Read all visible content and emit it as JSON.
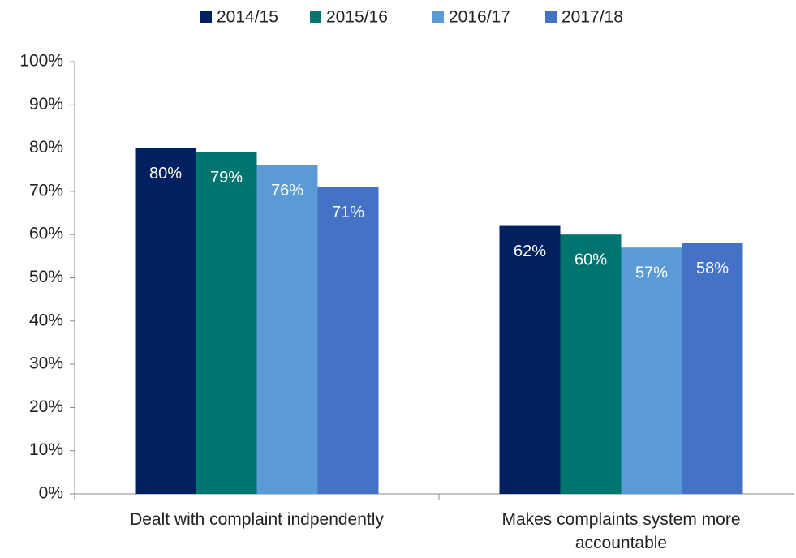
{
  "chart_data": {
    "type": "bar",
    "categories": [
      "Dealt with complaint indpendently",
      "Makes complaints system more accountable"
    ],
    "series": [
      {
        "name": "2014/15",
        "color": "#002060",
        "values": [
          80,
          62
        ],
        "value_labels": [
          "80%",
          "62%"
        ]
      },
      {
        "name": "2015/16",
        "color": "#00756F",
        "values": [
          79,
          60
        ],
        "value_labels": [
          "79%",
          "60%"
        ]
      },
      {
        "name": "2016/17",
        "color": "#5B9BD5",
        "values": [
          76,
          57
        ],
        "value_labels": [
          "76%",
          "57%"
        ]
      },
      {
        "name": "2017/18",
        "color": "#4472C4",
        "values": [
          71,
          58
        ],
        "value_labels": [
          "71%",
          "58%"
        ]
      }
    ],
    "ylim": [
      0,
      100
    ],
    "yticks": [
      {
        "value": 0,
        "label": "0%"
      },
      {
        "value": 10,
        "label": "10%"
      },
      {
        "value": 20,
        "label": "20%"
      },
      {
        "value": 30,
        "label": "30%"
      },
      {
        "value": 40,
        "label": "40%"
      },
      {
        "value": 50,
        "label": "50%"
      },
      {
        "value": 60,
        "label": "60%"
      },
      {
        "value": 70,
        "label": "70%"
      },
      {
        "value": 80,
        "label": "80%"
      },
      {
        "value": 90,
        "label": "90%"
      },
      {
        "value": 100,
        "label": "100%"
      }
    ],
    "legend": "top",
    "grid": false
  }
}
